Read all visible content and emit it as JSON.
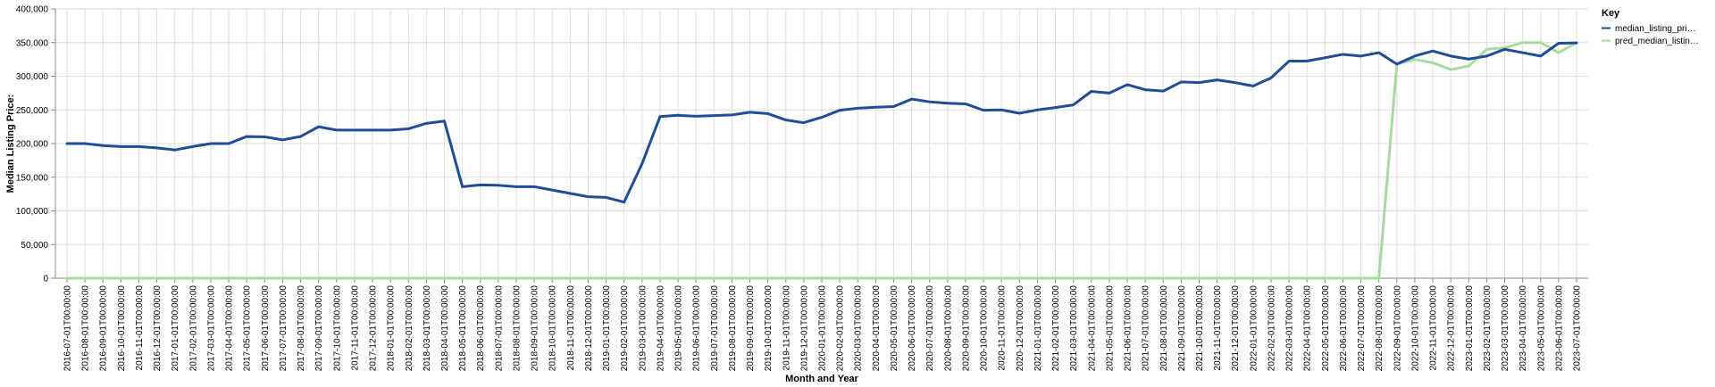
{
  "chart_data": {
    "type": "line",
    "xlabel": "Month and Year",
    "ylabel": "Median Listing Price:",
    "ylim": [
      0,
      400000
    ],
    "yticks": [
      "0",
      "50,000",
      "100,000",
      "150,000",
      "200,000",
      "250,000",
      "300,000",
      "350,000",
      "400,000"
    ],
    "grid": true,
    "legend": {
      "title": "Key",
      "placement": "top-right",
      "entries": [
        {
          "label": "median_listing_pri…",
          "color": "#1f4e96"
        },
        {
          "label": "pred_median_listin…",
          "color": "#a6dba0"
        }
      ]
    },
    "x": [
      "2016-07-01T00:00:00",
      "2016-08-01T00:00:00",
      "2016-09-01T00:00:00",
      "2016-10-01T00:00:00",
      "2016-11-01T00:00:00",
      "2016-12-01T00:00:00",
      "2017-01-01T00:00:00",
      "2017-02-01T00:00:00",
      "2017-03-01T00:00:00",
      "2017-04-01T00:00:00",
      "2017-05-01T00:00:00",
      "2017-06-01T00:00:00",
      "2017-07-01T00:00:00",
      "2017-08-01T00:00:00",
      "2017-09-01T00:00:00",
      "2017-10-01T00:00:00",
      "2017-11-01T00:00:00",
      "2017-12-01T00:00:00",
      "2018-01-01T00:00:00",
      "2018-02-01T00:00:00",
      "2018-03-01T00:00:00",
      "2018-04-01T00:00:00",
      "2018-05-01T00:00:00",
      "2018-06-01T00:00:00",
      "2018-07-01T00:00:00",
      "2018-08-01T00:00:00",
      "2018-09-01T00:00:00",
      "2018-10-01T00:00:00",
      "2018-11-01T00:00:00",
      "2018-12-01T00:00:00",
      "2019-01-01T00:00:00",
      "2019-02-01T00:00:00",
      "2019-03-01T00:00:00",
      "2019-04-01T00:00:00",
      "2019-05-01T00:00:00",
      "2019-06-01T00:00:00",
      "2019-07-01T00:00:00",
      "2019-08-01T00:00:00",
      "2019-09-01T00:00:00",
      "2019-10-01T00:00:00",
      "2019-11-01T00:00:00",
      "2019-12-01T00:00:00",
      "2020-01-01T00:00:00",
      "2020-02-01T00:00:00",
      "2020-03-01T00:00:00",
      "2020-04-01T00:00:00",
      "2020-05-01T00:00:00",
      "2020-06-01T00:00:00",
      "2020-07-01T00:00:00",
      "2020-08-01T00:00:00",
      "2020-09-01T00:00:00",
      "2020-10-01T00:00:00",
      "2020-11-01T00:00:00",
      "2020-12-01T00:00:00",
      "2021-01-01T00:00:00",
      "2021-02-01T00:00:00",
      "2021-03-01T00:00:00",
      "2021-04-01T00:00:00",
      "2021-05-01T00:00:00",
      "2021-06-01T00:00:00",
      "2021-07-01T00:00:00",
      "2021-08-01T00:00:00",
      "2021-09-01T00:00:00",
      "2021-10-01T00:00:00",
      "2021-11-01T00:00:00",
      "2021-12-01T00:00:00",
      "2022-01-01T00:00:00",
      "2022-02-01T00:00:00",
      "2022-03-01T00:00:00",
      "2022-04-01T00:00:00",
      "2022-05-01T00:00:00",
      "2022-06-01T00:00:00",
      "2022-07-01T00:00:00",
      "2022-08-01T00:00:00",
      "2022-09-01T00:00:00",
      "2022-10-01T00:00:00",
      "2022-11-01T00:00:00",
      "2022-12-01T00:00:00",
      "2023-01-01T00:00:00",
      "2023-02-01T00:00:00",
      "2023-03-01T00:00:00",
      "2023-04-01T00:00:00",
      "2023-05-01T00:00:00",
      "2023-06-01T00:00:00",
      "2023-07-01T00:00:00"
    ],
    "series": [
      {
        "name": "median_listing_pri…",
        "color": "#1f4e96",
        "values": [
          200000,
          200000,
          197000,
          195500,
          195500,
          193500,
          190500,
          195500,
          200000,
          200000,
          210500,
          210000,
          205500,
          210500,
          225000,
          220000,
          220000,
          220000,
          220000,
          222000,
          230000,
          233500,
          136000,
          138500,
          138000,
          136000,
          136000,
          131000,
          126000,
          121000,
          120000,
          113000,
          170000,
          240000,
          242000,
          240500,
          241500,
          242500,
          246500,
          244500,
          235000,
          231000,
          239000,
          249500,
          252500,
          254000,
          255000,
          266000,
          262000,
          260000,
          259000,
          249500,
          250000,
          245000,
          250000,
          253500,
          257500,
          277500,
          275000,
          287500,
          280000,
          278000,
          291500,
          290500,
          294500,
          290500,
          285500,
          297500,
          322500,
          322500,
          327500,
          332500,
          330000,
          335000,
          318000,
          330000,
          337500,
          330000,
          325500,
          330000,
          340000,
          335000,
          330000,
          349000,
          349500
        ]
      },
      {
        "name": "pred_median_listin…",
        "color": "#a6dba0",
        "values": [
          0,
          0,
          0,
          0,
          0,
          0,
          0,
          0,
          0,
          0,
          0,
          0,
          0,
          0,
          0,
          0,
          0,
          0,
          0,
          0,
          0,
          0,
          0,
          0,
          0,
          0,
          0,
          0,
          0,
          0,
          0,
          0,
          0,
          0,
          0,
          0,
          0,
          0,
          0,
          0,
          0,
          0,
          0,
          0,
          0,
          0,
          0,
          0,
          0,
          0,
          0,
          0,
          0,
          0,
          0,
          0,
          0,
          0,
          0,
          0,
          0,
          0,
          0,
          0,
          0,
          0,
          0,
          0,
          0,
          0,
          0,
          0,
          0,
          0,
          318000,
          325000,
          320000,
          310000,
          315000,
          340000,
          342000,
          350000,
          350000,
          335000,
          350000
        ]
      }
    ]
  }
}
